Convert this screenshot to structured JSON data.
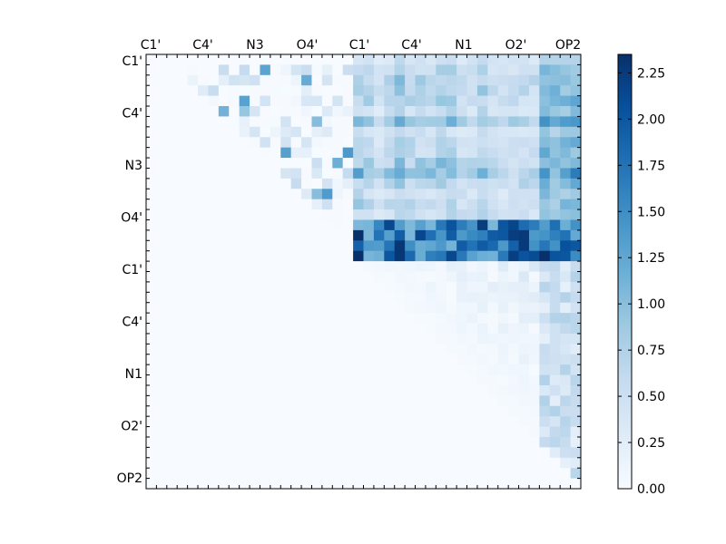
{
  "chart_data": {
    "type": "heatmap",
    "title": "",
    "xlabel": "",
    "ylabel": "",
    "top_tick_labels": [
      "C1'",
      "C4'",
      "N3",
      "O4'",
      "C1'",
      "C4'",
      "N1",
      "O2'",
      "OP2"
    ],
    "left_tick_labels": [
      "C1'",
      "C4'",
      "N3",
      "O4'",
      "C1'",
      "C4'",
      "N1",
      "O2'",
      "OP2"
    ],
    "grid_size": 42,
    "colorbar": {
      "min": 0,
      "max": 2.35,
      "ticks": [
        "0.00",
        "0.25",
        "0.50",
        "0.75",
        "1.00",
        "1.25",
        "1.50",
        "1.75",
        "2.00",
        "2.25"
      ],
      "colormap": "Blues"
    },
    "regions": [
      {
        "description": "upper-left triangle, weak pair differences",
        "rows": [
          0,
          15
        ],
        "cols": [
          2,
          19
        ],
        "value_range": [
          0.0,
          0.95
        ]
      },
      {
        "description": "upper-right block, moderate",
        "rows": [
          0,
          15
        ],
        "cols": [
          20,
          41
        ],
        "value_range": [
          0.1,
          1.25
        ]
      },
      {
        "description": "upper-right block, strong band",
        "rows": [
          16,
          19
        ],
        "cols": [
          20,
          41
        ],
        "value_range": [
          1.0,
          2.35
        ]
      },
      {
        "description": "lower-right triangle, weak",
        "rows": [
          20,
          38
        ],
        "cols": [
          21,
          41
        ],
        "value_range": [
          0.0,
          0.85
        ]
      },
      {
        "description": "lower-left region",
        "rows": [
          20,
          41
        ],
        "cols": [
          0,
          20
        ],
        "value_range": [
          0.0,
          0.0
        ]
      }
    ]
  }
}
